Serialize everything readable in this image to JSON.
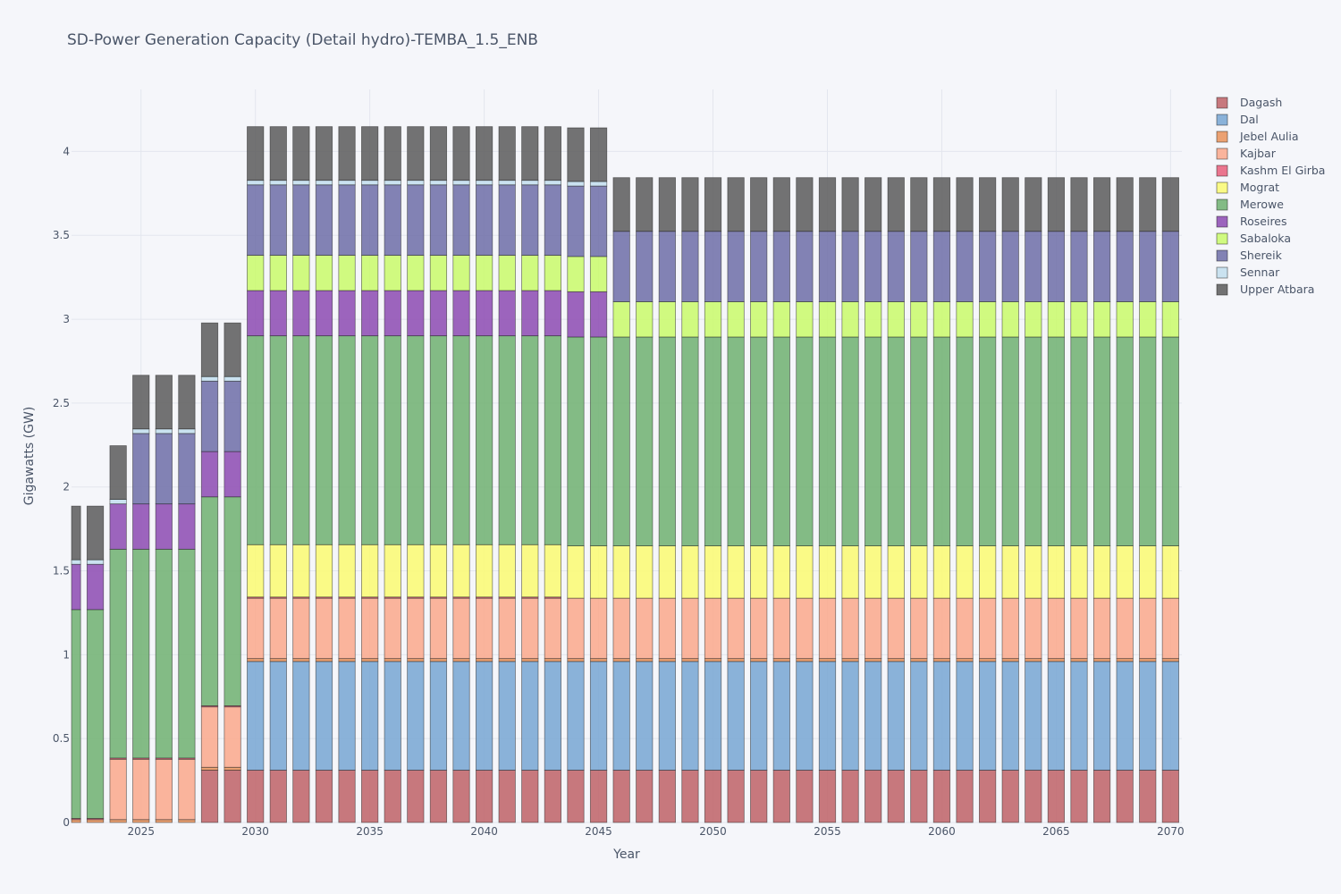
{
  "chart_data": {
    "type": "bar",
    "stacked": true,
    "title": "SD-Power Generation Capacity (Detail hydro)-TEMBA_1.5_ENB",
    "xlabel": "Year",
    "ylabel": "Gigawatts (GW)",
    "ylim": [
      0,
      4.37
    ],
    "xlim": [
      2022,
      2070
    ],
    "x_ticks": [
      2025,
      2030,
      2035,
      2040,
      2045,
      2050,
      2055,
      2060,
      2065,
      2070
    ],
    "y_ticks": [
      0,
      0.5,
      1,
      1.5,
      2,
      2.5,
      3,
      3.5,
      4
    ],
    "y_tick_labels": [
      "0",
      "0.5",
      "1",
      "1.5",
      "2",
      "2.5",
      "3",
      "3.5",
      "4"
    ],
    "grid": true,
    "legend_position": "top-right",
    "series": [
      {
        "name": "Dagash",
        "color": "#c0676b",
        "segments": [
          {
            "from": 2022,
            "to": 2027,
            "value": 0
          },
          {
            "from": 2028,
            "to": 2070,
            "value": 0.312
          }
        ]
      },
      {
        "name": "Dal",
        "color": "#7ba8d4",
        "segments": [
          {
            "from": 2022,
            "to": 2029,
            "value": 0
          },
          {
            "from": 2030,
            "to": 2070,
            "value": 0.648
          }
        ]
      },
      {
        "name": "Jebel Aulia",
        "color": "#e9955e",
        "segments": [
          {
            "from": 2022,
            "to": 2070,
            "value": 0.017
          }
        ]
      },
      {
        "name": "Kajbar",
        "color": "#fbab8e",
        "segments": [
          {
            "from": 2022,
            "to": 2023,
            "value": 0
          },
          {
            "from": 2024,
            "to": 2070,
            "value": 0.36
          }
        ]
      },
      {
        "name": "Kashm El Girba",
        "color": "#e8637e",
        "segments": [
          {
            "from": 2022,
            "to": 2043,
            "value": 0.007
          },
          {
            "from": 2044,
            "to": 2070,
            "value": 0
          }
        ]
      },
      {
        "name": "Mograt",
        "color": "#fbfb75",
        "segments": [
          {
            "from": 2022,
            "to": 2029,
            "value": 0
          },
          {
            "from": 2030,
            "to": 2070,
            "value": 0.312
          }
        ]
      },
      {
        "name": "Merowe",
        "color": "#73b374",
        "segments": [
          {
            "from": 2022,
            "to": 2070,
            "value": 1.245
          }
        ]
      },
      {
        "name": "Roseires",
        "color": "#9050b4",
        "segments": [
          {
            "from": 2022,
            "to": 2045,
            "value": 0.27
          },
          {
            "from": 2046,
            "to": 2070,
            "value": 0
          }
        ]
      },
      {
        "name": "Sabaloka",
        "color": "#cbfa6e",
        "segments": [
          {
            "from": 2022,
            "to": 2029,
            "value": 0
          },
          {
            "from": 2030,
            "to": 2070,
            "value": 0.21
          }
        ]
      },
      {
        "name": "Shereik",
        "color": "#7272aa",
        "segments": [
          {
            "from": 2022,
            "to": 2025,
            "value": 0
          },
          {
            "from": 2026,
            "to": 2070,
            "value": 0.42
          }
        ]
      },
      {
        "name": "Sennar",
        "color": "#c4dfee",
        "segments": [
          {
            "from": 2022,
            "to": 2045,
            "value": 0.027
          },
          {
            "from": 2046,
            "to": 2070,
            "value": 0
          }
        ]
      },
      {
        "name": "Upper Atbara",
        "color": "#606060",
        "segments": [
          {
            "from": 2022,
            "to": 2023,
            "value": 0.32
          },
          {
            "from": 2024,
            "to": 2027,
            "value": 0.32
          },
          {
            "from": 2028,
            "to": 2070,
            "value": 0.32
          }
        ]
      }
    ],
    "overrides": [
      {
        "year": 2022,
        "series": "Dagash",
        "value": 0
      },
      {
        "year": 2024,
        "series": "Shereik",
        "value": 0
      },
      {
        "year": 2025,
        "series": "Shereik",
        "value": 0.42
      },
      {
        "year": 2024,
        "series": "Roseires",
        "value": 0.27
      }
    ]
  }
}
